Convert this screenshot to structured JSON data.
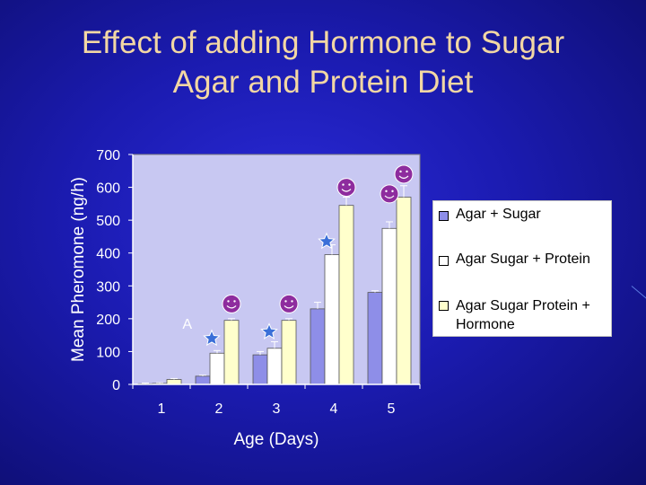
{
  "slide": {
    "title_line1": "Effect of adding Hormone to Sugar",
    "title_line2": "Agar and Protein Diet"
  },
  "colors": {
    "background": "#1b1bb0",
    "title": "#f2d7a4",
    "plot_area": "#c8c8f2",
    "series": [
      "#8e8ee8",
      "#ffffff",
      "#ffffcc"
    ],
    "smiley": "#8e2c9e",
    "star": "#3a6fd8"
  },
  "chart_data": {
    "type": "bar",
    "categories": [
      "1",
      "2",
      "3",
      "4",
      "5"
    ],
    "series": [
      {
        "name": "Agar + Sugar",
        "values": [
          2,
          25,
          90,
          230,
          280
        ],
        "errors": [
          2,
          3,
          10,
          20,
          5
        ]
      },
      {
        "name": "Agar Sugar + Protein",
        "values": [
          3,
          95,
          110,
          395,
          475
        ],
        "errors": [
          2,
          8,
          20,
          30,
          20
        ]
      },
      {
        "name": "Agar Sugar Protein + Hormone",
        "values": [
          15,
          195,
          195,
          545,
          570
        ],
        "errors": [
          3,
          5,
          5,
          25,
          35
        ]
      }
    ],
    "xlabel": "Age (Days)",
    "ylabel": "Mean Pheromone (ng/h)",
    "ylim": [
      0,
      700
    ],
    "yticks": [
      0,
      100,
      200,
      300,
      400,
      500,
      600,
      700
    ],
    "grid": false,
    "legend": "right",
    "annotations": [
      {
        "text": "A",
        "category": "2"
      },
      {
        "symbol": "star",
        "category": "2",
        "series": 1,
        "value": 140
      },
      {
        "symbol": "star",
        "category": "3",
        "series": 1,
        "value": 160
      },
      {
        "symbol": "star",
        "category": "4",
        "series": 1,
        "value": 435
      },
      {
        "symbol": "smiley",
        "category": "2",
        "series": 2,
        "value": 245
      },
      {
        "symbol": "smiley",
        "category": "3",
        "series": 2,
        "value": 245
      },
      {
        "symbol": "smiley",
        "category": "4",
        "series": 2,
        "value": 600
      },
      {
        "symbol": "smiley",
        "category": "5",
        "series": 1,
        "value": 580
      },
      {
        "symbol": "smiley",
        "category": "5",
        "series": 2,
        "value": 640
      }
    ]
  }
}
